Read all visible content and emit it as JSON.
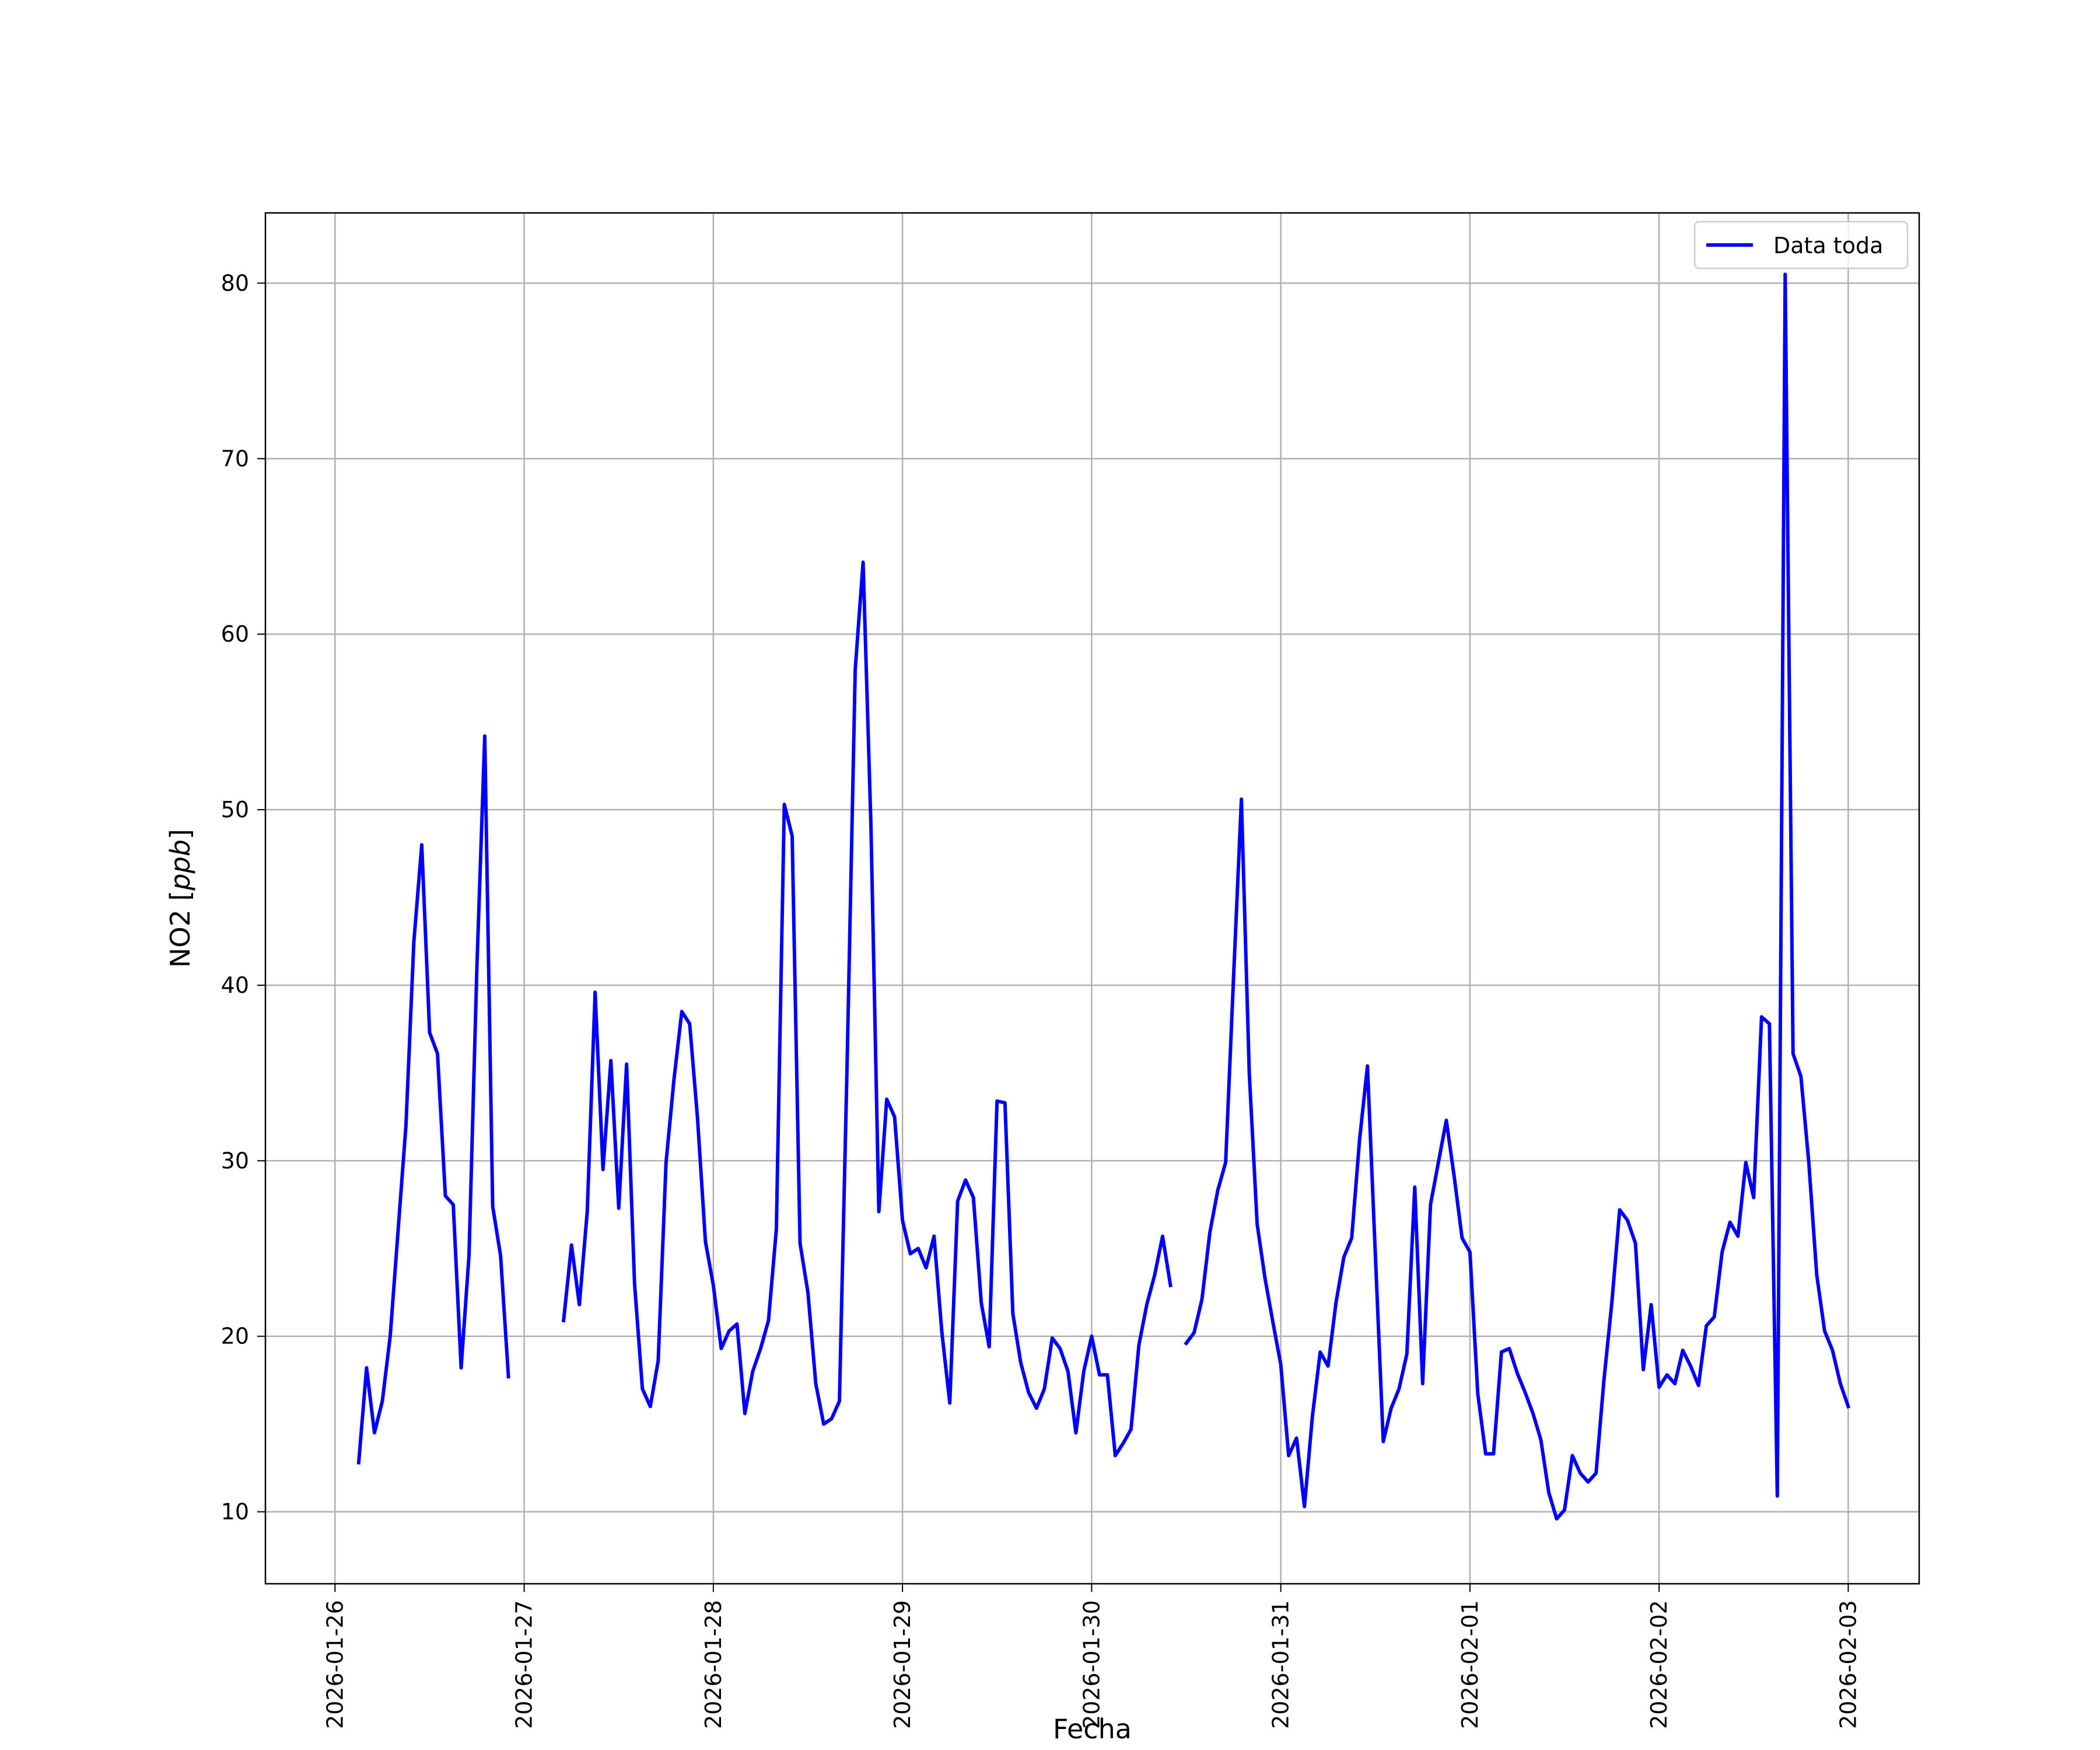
{
  "chart_data": {
    "type": "line",
    "title": "",
    "xlabel": "Fecha",
    "ylabel": "NO2",
    "ylabel_unit": "ppb",
    "x_axis_type": "date",
    "xlim": [
      "2026-01-25 15:10",
      "2026-02-03 09:00"
    ],
    "ylim": [
      5.9,
      84.0
    ],
    "xticks": [
      "2026-01-26",
      "2026-01-27",
      "2026-01-28",
      "2026-01-29",
      "2026-01-30",
      "2026-01-31",
      "2026-02-01",
      "2026-02-02",
      "2026-02-03"
    ],
    "yticks": [
      10,
      20,
      30,
      40,
      50,
      60,
      70,
      80
    ],
    "grid": true,
    "legend_position": "top-right",
    "line_color": "#0000ff",
    "series": [
      {
        "name": "Data toda",
        "segments": [
          [
            [
              "2026-01-26 03:00",
              12.8
            ],
            [
              "2026-01-26 04:00",
              18.2
            ],
            [
              "2026-01-26 05:00",
              14.5
            ],
            [
              "2026-01-26 06:00",
              16.3
            ],
            [
              "2026-01-26 07:00",
              20.0
            ],
            [
              "2026-01-26 08:00",
              26.0
            ],
            [
              "2026-01-26 09:00",
              32.0
            ],
            [
              "2026-01-26 10:00",
              42.5
            ],
            [
              "2026-01-26 11:00",
              48.0
            ],
            [
              "2026-01-26 12:00",
              37.3
            ],
            [
              "2026-01-26 13:00",
              36.1
            ],
            [
              "2026-01-26 14:00",
              28.0
            ],
            [
              "2026-01-26 15:00",
              27.5
            ],
            [
              "2026-01-26 16:00",
              18.2
            ],
            [
              "2026-01-26 17:00",
              24.6
            ],
            [
              "2026-01-26 18:00",
              41.0
            ],
            [
              "2026-01-26 19:00",
              54.2
            ],
            [
              "2026-01-26 20:00",
              27.4
            ],
            [
              "2026-01-26 21:00",
              24.6
            ],
            [
              "2026-01-26 22:00",
              17.7
            ]
          ],
          [
            [
              "2026-01-27 05:00",
              20.9
            ],
            [
              "2026-01-27 06:00",
              25.2
            ],
            [
              "2026-01-27 07:00",
              21.8
            ],
            [
              "2026-01-27 08:00",
              27.1
            ],
            [
              "2026-01-27 09:00",
              39.6
            ],
            [
              "2026-01-27 10:00",
              29.5
            ],
            [
              "2026-01-27 11:00",
              35.7
            ],
            [
              "2026-01-27 12:00",
              27.3
            ],
            [
              "2026-01-27 13:00",
              35.5
            ],
            [
              "2026-01-27 14:00",
              23.0
            ],
            [
              "2026-01-27 15:00",
              17.0
            ],
            [
              "2026-01-27 16:00",
              16.0
            ],
            [
              "2026-01-27 17:00",
              18.6
            ],
            [
              "2026-01-27 18:00",
              29.9
            ],
            [
              "2026-01-27 19:00",
              34.6
            ],
            [
              "2026-01-27 20:00",
              38.5
            ],
            [
              "2026-01-27 21:00",
              37.8
            ],
            [
              "2026-01-27 22:00",
              32.4
            ],
            [
              "2026-01-27 23:00",
              25.4
            ],
            [
              "2026-01-28 00:00",
              22.9
            ],
            [
              "2026-01-28 01:00",
              19.3
            ],
            [
              "2026-01-28 02:00",
              20.3
            ],
            [
              "2026-01-28 03:00",
              20.7
            ],
            [
              "2026-01-28 04:00",
              15.6
            ],
            [
              "2026-01-28 05:00",
              18.0
            ],
            [
              "2026-01-28 06:00",
              19.3
            ],
            [
              "2026-01-28 07:00",
              20.9
            ],
            [
              "2026-01-28 08:00",
              26.1
            ],
            [
              "2026-01-28 09:00",
              50.3
            ],
            [
              "2026-01-28 10:00",
              48.5
            ],
            [
              "2026-01-28 11:00",
              25.3
            ],
            [
              "2026-01-28 12:00",
              22.5
            ],
            [
              "2026-01-28 13:00",
              17.3
            ],
            [
              "2026-01-28 14:00",
              15.0
            ],
            [
              "2026-01-28 15:00",
              15.3
            ],
            [
              "2026-01-28 16:00",
              16.3
            ],
            [
              "2026-01-28 17:00",
              36.0
            ],
            [
              "2026-01-28 18:00",
              58.0
            ],
            [
              "2026-01-28 19:00",
              64.1
            ],
            [
              "2026-01-28 20:00",
              49.0
            ],
            [
              "2026-01-28 21:00",
              27.1
            ],
            [
              "2026-01-28 22:00",
              33.5
            ],
            [
              "2026-01-28 23:00",
              32.5
            ],
            [
              "2026-01-29 00:00",
              26.6
            ],
            [
              "2026-01-29 01:00",
              24.7
            ],
            [
              "2026-01-29 02:00",
              25.0
            ],
            [
              "2026-01-29 03:00",
              23.9
            ],
            [
              "2026-01-29 04:00",
              25.7
            ],
            [
              "2026-01-29 05:00",
              20.2
            ],
            [
              "2026-01-29 06:00",
              16.2
            ],
            [
              "2026-01-29 07:00",
              27.7
            ],
            [
              "2026-01-29 08:00",
              28.9
            ],
            [
              "2026-01-29 09:00",
              27.9
            ],
            [
              "2026-01-29 10:00",
              21.9
            ],
            [
              "2026-01-29 11:00",
              19.4
            ],
            [
              "2026-01-29 12:00",
              33.4
            ],
            [
              "2026-01-29 13:00",
              33.3
            ],
            [
              "2026-01-29 14:00",
              21.3
            ],
            [
              "2026-01-29 15:00",
              18.5
            ],
            [
              "2026-01-29 16:00",
              16.8
            ],
            [
              "2026-01-29 17:00",
              15.9
            ],
            [
              "2026-01-29 18:00",
              17.0
            ],
            [
              "2026-01-29 19:00",
              19.9
            ],
            [
              "2026-01-29 20:00",
              19.3
            ],
            [
              "2026-01-29 21:00",
              18.0
            ],
            [
              "2026-01-29 22:00",
              14.5
            ],
            [
              "2026-01-29 23:00",
              18.0
            ],
            [
              "2026-01-30 00:00",
              20.0
            ],
            [
              "2026-01-30 01:00",
              17.8
            ],
            [
              "2026-01-30 02:00",
              17.8
            ],
            [
              "2026-01-30 03:00",
              13.2
            ],
            [
              "2026-01-30 04:00",
              13.9
            ],
            [
              "2026-01-30 05:00",
              14.7
            ],
            [
              "2026-01-30 06:00",
              19.5
            ],
            [
              "2026-01-30 07:00",
              21.8
            ],
            [
              "2026-01-30 08:00",
              23.5
            ],
            [
              "2026-01-30 09:00",
              25.7
            ],
            [
              "2026-01-30 10:00",
              22.9
            ]
          ],
          [
            [
              "2026-01-30 12:00",
              19.6
            ],
            [
              "2026-01-30 13:00",
              20.2
            ],
            [
              "2026-01-30 14:00",
              22.1
            ],
            [
              "2026-01-30 15:00",
              25.9
            ],
            [
              "2026-01-30 16:00",
              28.3
            ],
            [
              "2026-01-30 17:00",
              29.9
            ],
            [
              "2026-01-30 18:00",
              40.4
            ],
            [
              "2026-01-30 19:00",
              50.6
            ],
            [
              "2026-01-30 20:00",
              35.0
            ],
            [
              "2026-01-30 21:00",
              26.4
            ],
            [
              "2026-01-30 22:00",
              23.3
            ],
            [
              "2026-01-30 23:00",
              20.8
            ],
            [
              "2026-01-31 00:00",
              18.4
            ],
            [
              "2026-01-31 01:00",
              13.2
            ],
            [
              "2026-01-31 02:00",
              14.2
            ],
            [
              "2026-01-31 03:00",
              10.3
            ],
            [
              "2026-01-31 04:00",
              15.4
            ],
            [
              "2026-01-31 05:00",
              19.1
            ],
            [
              "2026-01-31 06:00",
              18.3
            ],
            [
              "2026-01-31 07:00",
              21.9
            ],
            [
              "2026-01-31 08:00",
              24.5
            ],
            [
              "2026-01-31 09:00",
              25.6
            ],
            [
              "2026-01-31 10:00",
              31.2
            ],
            [
              "2026-01-31 11:00",
              35.4
            ],
            [
              "2026-01-31 12:00",
              24.6
            ],
            [
              "2026-01-31 13:00",
              14.0
            ],
            [
              "2026-01-31 14:00",
              15.9
            ],
            [
              "2026-01-31 15:00",
              17.0
            ],
            [
              "2026-01-31 16:00",
              19.0
            ],
            [
              "2026-01-31 17:00",
              28.5
            ],
            [
              "2026-01-31 18:00",
              17.3
            ],
            [
              "2026-01-31 19:00",
              27.5
            ],
            [
              "2026-01-31 20:00",
              29.9
            ],
            [
              "2026-01-31 21:00",
              32.3
            ],
            [
              "2026-01-31 22:00",
              29.1
            ],
            [
              "2026-01-31 23:00",
              25.6
            ],
            [
              "2026-02-01 00:00",
              24.8
            ],
            [
              "2026-02-01 01:00",
              16.7
            ],
            [
              "2026-02-01 02:00",
              13.3
            ],
            [
              "2026-02-01 03:00",
              13.3
            ],
            [
              "2026-02-01 04:00",
              19.1
            ],
            [
              "2026-02-01 05:00",
              19.3
            ],
            [
              "2026-02-01 06:00",
              17.9
            ],
            [
              "2026-02-01 07:00",
              16.8
            ],
            [
              "2026-02-01 08:00",
              15.6
            ],
            [
              "2026-02-01 09:00",
              14.1
            ],
            [
              "2026-02-01 10:00",
              11.1
            ],
            [
              "2026-02-01 11:00",
              9.6
            ],
            [
              "2026-02-01 12:00",
              10.1
            ],
            [
              "2026-02-01 13:00",
              13.2
            ],
            [
              "2026-02-01 14:00",
              12.2
            ],
            [
              "2026-02-01 15:00",
              11.7
            ],
            [
              "2026-02-01 16:00",
              12.2
            ],
            [
              "2026-02-01 17:00",
              17.5
            ],
            [
              "2026-02-01 18:00",
              21.9
            ],
            [
              "2026-02-01 19:00",
              27.2
            ],
            [
              "2026-02-01 20:00",
              26.6
            ],
            [
              "2026-02-01 21:00",
              25.3
            ],
            [
              "2026-02-01 22:00",
              18.1
            ],
            [
              "2026-02-01 23:00",
              21.8
            ],
            [
              "2026-02-02 00:00",
              17.1
            ],
            [
              "2026-02-02 01:00",
              17.8
            ],
            [
              "2026-02-02 02:00",
              17.3
            ],
            [
              "2026-02-02 03:00",
              19.2
            ],
            [
              "2026-02-02 04:00",
              18.3
            ],
            [
              "2026-02-02 05:00",
              17.2
            ],
            [
              "2026-02-02 06:00",
              20.6
            ],
            [
              "2026-02-02 07:00",
              21.1
            ],
            [
              "2026-02-02 08:00",
              24.8
            ],
            [
              "2026-02-02 09:00",
              26.5
            ],
            [
              "2026-02-02 10:00",
              25.7
            ],
            [
              "2026-02-02 11:00",
              29.9
            ],
            [
              "2026-02-02 12:00",
              27.9
            ],
            [
              "2026-02-02 13:00",
              38.2
            ],
            [
              "2026-02-02 14:00",
              37.8
            ],
            [
              "2026-02-02 15:00",
              10.9
            ],
            [
              "2026-02-02 16:00",
              80.5
            ],
            [
              "2026-02-02 17:00",
              36.1
            ],
            [
              "2026-02-02 18:00",
              34.8
            ],
            [
              "2026-02-02 19:00",
              29.9
            ],
            [
              "2026-02-02 20:00",
              23.5
            ],
            [
              "2026-02-02 21:00",
              20.3
            ],
            [
              "2026-02-02 22:00",
              19.2
            ],
            [
              "2026-02-02 23:00",
              17.3
            ],
            [
              "2026-02-03 00:00",
              16.0
            ]
          ]
        ]
      }
    ]
  }
}
